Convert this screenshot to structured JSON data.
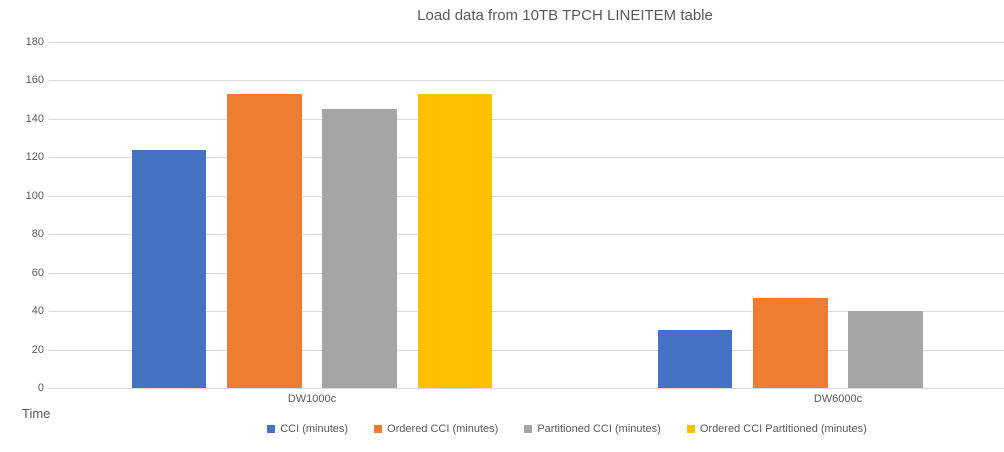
{
  "chart_data": {
    "type": "bar",
    "title": "Load data from 10TB TPCH LINEITEM table",
    "categories": [
      "DW1000c",
      "DW6000c"
    ],
    "series": [
      {
        "name": "CCI (minutes)",
        "color": "#4472C4",
        "values": [
          124,
          30
        ]
      },
      {
        "name": "Ordered CCI (minutes)",
        "color": "#ED7D31",
        "values": [
          153,
          47
        ]
      },
      {
        "name": "Partitioned CCI (minutes)",
        "color": "#A5A5A5",
        "values": [
          145,
          40
        ]
      },
      {
        "name": "Ordered CCI Partitioned (minutes)",
        "color": "#FFC000",
        "values": [
          153,
          null
        ]
      }
    ],
    "ylabel": "Time",
    "xlabel": "",
    "ylim": [
      0,
      180
    ],
    "ytick_step": 20,
    "grid": true,
    "legend_position": "bottom",
    "colors": {
      "gridline": "#d9d9d9",
      "text": "#595959",
      "background": "#ffffff"
    }
  }
}
